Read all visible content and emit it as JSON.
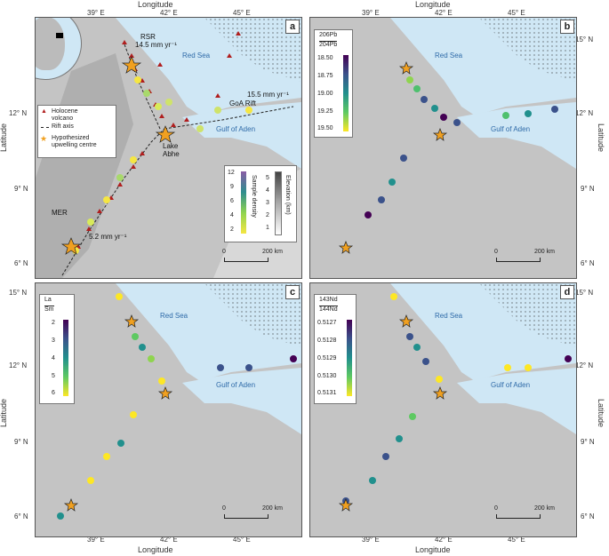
{
  "axes": {
    "xlabel": "Longitude",
    "ylabel": "Latitude",
    "lon_ticks": [
      "39° E",
      "42° E",
      "45° E"
    ],
    "lat_ticks": [
      "15° N",
      "12° N",
      "9° N",
      "6° N"
    ]
  },
  "panels": {
    "a": {
      "label": "a",
      "red_sea": "Red Sea",
      "gulf": "Gulf of Aden",
      "rsr": "RSR",
      "rsr_rate": "14.5 mm yr⁻¹",
      "goa": "GoA Rift",
      "goa_rate": "15.5 mm yr⁻¹",
      "lake": "Lake",
      "lake2": "Abhe",
      "mer": "MER",
      "mer_rate": "5.2 mm yr⁻¹",
      "legend": {
        "volcano": "Holocene",
        "volcano2": "volcano",
        "rift": "Rift axis",
        "upwell": "Hypothesized",
        "upwell2": "upwelling centre"
      },
      "density": {
        "title": "Sample density",
        "ticks": [
          "12",
          "9",
          "6",
          "4",
          "2"
        ],
        "elev_title": "Elevation (km)",
        "elev_ticks": [
          "5",
          "4",
          "3",
          "2",
          "1"
        ]
      },
      "scale": {
        "zero": "0",
        "end": "200 km"
      }
    },
    "b": {
      "label": "b",
      "red_sea": "Red Sea",
      "gulf": "Gulf of Aden",
      "cbar_title_top": "206Pb",
      "cbar_title_bot": "204Pb",
      "ticks": [
        "18.50",
        "18.75",
        "19.00",
        "19.25",
        "19.50"
      ],
      "scale": {
        "zero": "0",
        "end": "200 km"
      }
    },
    "c": {
      "label": "c",
      "red_sea": "Red Sea",
      "gulf": "Gulf of Aden",
      "cbar_title_top": "La",
      "cbar_title_bot": "Sm",
      "ticks": [
        "2",
        "3",
        "4",
        "5",
        "6"
      ],
      "scale": {
        "zero": "0",
        "end": "200 km"
      }
    },
    "d": {
      "label": "d",
      "red_sea": "Red Sea",
      "gulf": "Gulf of Aden",
      "cbar_title_top": "143Nd",
      "cbar_title_bot": "144Nd",
      "ticks": [
        "0.5127",
        "0.5128",
        "0.5129",
        "0.5130",
        "0.5131"
      ],
      "scale": {
        "zero": "0",
        "end": "200 km"
      }
    }
  },
  "colors": {
    "sea": "#cfe7f5",
    "land": "#bdbdbd",
    "volcano": "#b01e1e",
    "star": "#f0a020"
  }
}
